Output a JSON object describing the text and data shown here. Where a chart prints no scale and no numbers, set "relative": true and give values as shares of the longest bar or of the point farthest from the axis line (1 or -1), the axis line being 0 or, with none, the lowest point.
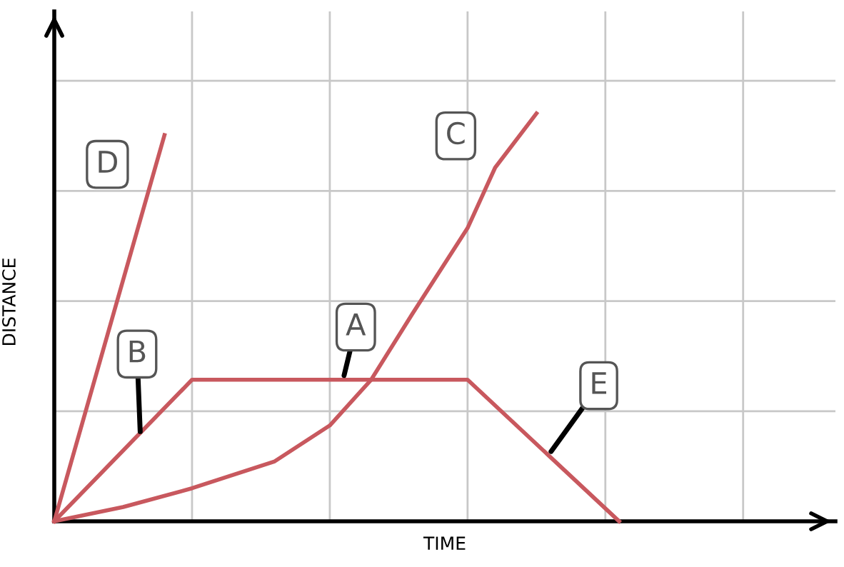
{
  "chart_data": {
    "type": "line",
    "xlabel": "TIME",
    "ylabel": "DISTANCE",
    "relative": true,
    "categories": [
      null,
      null,
      null,
      null,
      null,
      null,
      null,
      null,
      null,
      null,
      null,
      null,
      null,
      null,
      null,
      null,
      null,
      null,
      null,
      null,
      null,
      null,
      null,
      null,
      null,
      null,
      null,
      null,
      null,
      null,
      null,
      null,
      null,
      null,
      null,
      null,
      null,
      null,
      null,
      null,
      null,
      null,
      null,
      null,
      null,
      null,
      null,
      null,
      null,
      null,
      null,
      null,
      null,
      null,
      null,
      null,
      null
    ],
    "grid": true,
    "marker": "none",
    "line_style": "solid",
    "series": [
      {
        "color": "#c8585e",
        "values": [
          0,
          null,
          null,
          null,
          null,
          null,
          null,
          null,
          0.947,
          null,
          null,
          null,
          null,
          null,
          null,
          null,
          null,
          null,
          null,
          null,
          null,
          null,
          null,
          null,
          null,
          null,
          null,
          null,
          null,
          null,
          null,
          null,
          null,
          null,
          null,
          null,
          null,
          null,
          null,
          null,
          null,
          null,
          null,
          null,
          null,
          null,
          null,
          null,
          null,
          null,
          null,
          null,
          null,
          null,
          null,
          null,
          null
        ]
      },
      {
        "color": "#c8585e",
        "values": [
          0,
          null,
          null,
          null,
          null,
          null,
          null,
          null,
          null,
          null,
          0.347,
          null,
          null,
          null,
          null,
          null,
          null,
          null,
          null,
          null,
          null,
          null,
          null,
          null,
          null,
          null,
          null,
          null,
          null,
          null,
          0.347,
          null,
          null,
          null,
          null,
          null,
          null,
          null,
          null,
          null,
          null,
          0,
          null,
          null,
          null,
          null,
          null,
          null,
          null,
          null,
          null,
          null,
          null,
          null,
          null,
          null,
          null
        ]
      },
      {
        "color": "#c8585e",
        "values": [
          0,
          null,
          null,
          null,
          null,
          0.035,
          null,
          null,
          null,
          null,
          0.081,
          null,
          null,
          null,
          null,
          null,
          0.147,
          null,
          null,
          null,
          0.235,
          null,
          null,
          0.347,
          null,
          null,
          0.509,
          null,
          null,
          null,
          0.719,
          null,
          0.867,
          null,
          null,
          1.0,
          null,
          null,
          null,
          null,
          null,
          null,
          null,
          null,
          null,
          null,
          null,
          null,
          null,
          null,
          null,
          null,
          null,
          null,
          null,
          null,
          null
        ]
      }
    ],
    "annotations": [
      "A",
      "B",
      "C",
      "D",
      "E"
    ]
  }
}
